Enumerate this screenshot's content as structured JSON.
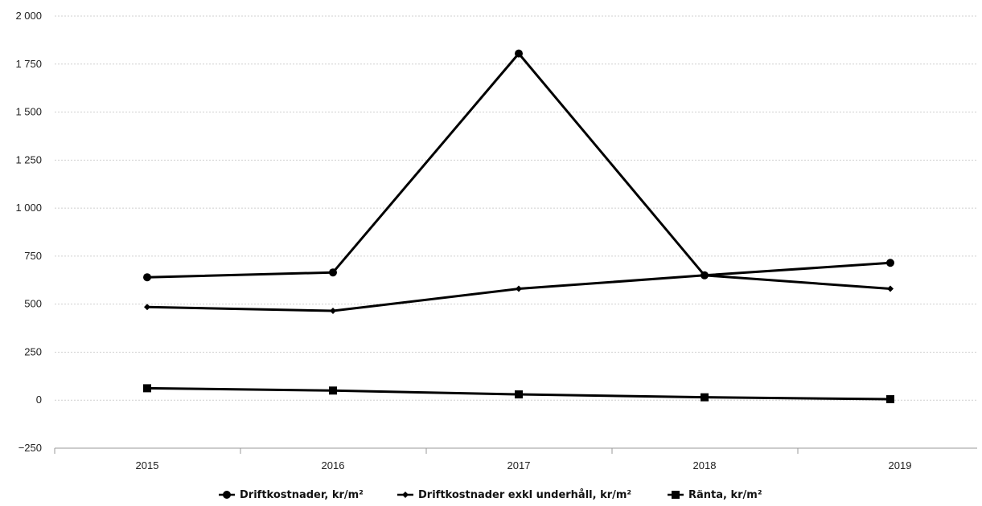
{
  "chart_data": {
    "type": "line",
    "title": "",
    "xlabel": "",
    "ylabel": "",
    "categories": [
      "2015",
      "2016",
      "2017",
      "2018",
      "2019"
    ],
    "ylim": [
      -250,
      2000
    ],
    "yticks": [
      -250,
      0,
      250,
      500,
      750,
      1000,
      1250,
      1500,
      1750,
      2000
    ],
    "ytick_labels": [
      "−250",
      "0",
      "250",
      "500",
      "750",
      "1 000",
      "1 250",
      "1 500",
      "1 750",
      "2 000"
    ],
    "grid": true,
    "legend_position": "bottom",
    "line_color": "#000000",
    "series": [
      {
        "name": "Driftkostnader, kr/m²",
        "marker": "circle",
        "values": [
          640,
          665,
          1805,
          650,
          715
        ]
      },
      {
        "name": "Driftkostnader exkl underhåll, kr/m²",
        "marker": "diamond",
        "values": [
          485,
          465,
          580,
          650,
          580
        ]
      },
      {
        "name": "Ränta, kr/m²",
        "marker": "square",
        "values": [
          62,
          50,
          30,
          15,
          5
        ]
      }
    ]
  }
}
